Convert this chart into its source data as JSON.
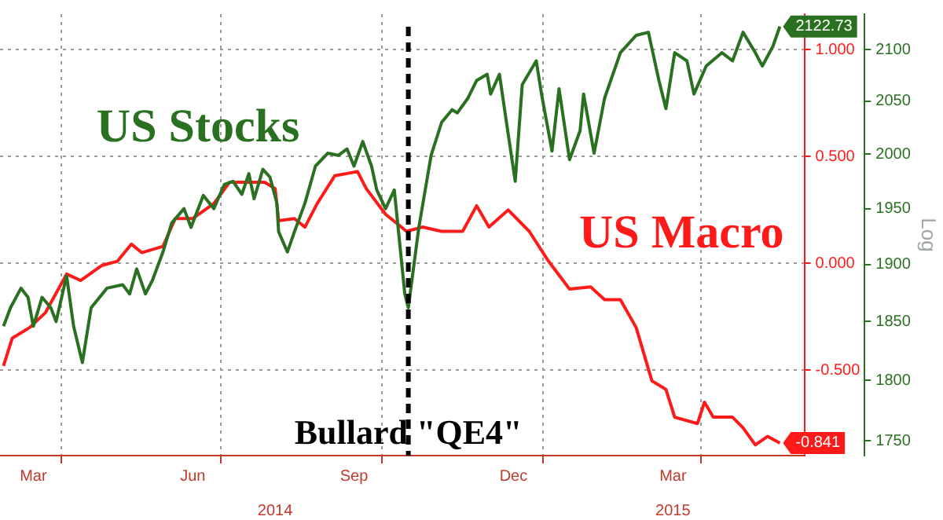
{
  "chart_data": {
    "type": "line",
    "xlim": [
      "2014-02-25",
      "2015-05-30"
    ],
    "xticks": [
      {
        "value": "2014-03-16",
        "label": "Mar"
      },
      {
        "value": "2014-04-01",
        "label": null
      },
      {
        "value": "2014-06-15",
        "label": "Jun"
      },
      {
        "value": "2014-07-01",
        "label": null
      },
      {
        "value": "2014-09-15",
        "label": "Sep"
      },
      {
        "value": "2014-10-01",
        "label": null
      },
      {
        "value": "2014-12-15",
        "label": "Dec"
      },
      {
        "value": "2015-01-01",
        "label": null
      },
      {
        "value": "2015-03-16",
        "label": "Mar"
      },
      {
        "value": "2015-04-01",
        "label": null
      }
    ],
    "x2lim": [
      "2014-02-25",
      "2015-05-30"
    ],
    "x2ticks": [
      {
        "value": "2014-08-01",
        "label": "2014"
      },
      {
        "value": "2015-03-16",
        "label": "2015"
      }
    ],
    "ylim": [
      -0.9,
      1.167
    ],
    "yticks": [
      {
        "value": 1,
        "label": "1.000"
      },
      {
        "value": 0.5,
        "label": "0.500"
      },
      {
        "value": 0,
        "label": "0.000"
      },
      {
        "value": -0.5,
        "label": "-0.500"
      }
    ],
    "y2lim": [
      1738,
      2135
    ],
    "y2ticks": [
      1750,
      1800,
      1850,
      1900,
      1950,
      2000,
      2050,
      2100
    ],
    "y2label": "Log",
    "log": "y2",
    "grid": true,
    "legend": false,
    "marker": "none",
    "ref_lines": [
      {
        "axis": "x",
        "value": "2014-10-16",
        "label": "Bullard \"QE4\"",
        "color": "#000000",
        "line_style": "dashed"
      }
    ],
    "series": [
      {
        "name": "US Stocks",
        "color": "#2a7021",
        "axis": "y2",
        "x": [
          "2014-02-27",
          "2014-03-03",
          "2014-03-09",
          "2014-03-13",
          "2014-03-16",
          "2014-03-21",
          "2014-03-26",
          "2014-03-29",
          "2014-04-04",
          "2014-04-08",
          "2014-04-13",
          "2014-04-18",
          "2014-04-27",
          "2014-05-06",
          "2014-05-10",
          "2014-05-14",
          "2014-05-19",
          "2014-05-23",
          "2014-05-29",
          "2014-06-03",
          "2014-06-10",
          "2014-06-14",
          "2014-06-21",
          "2014-06-27",
          "2014-07-03",
          "2014-07-08",
          "2014-07-13",
          "2014-07-17",
          "2014-07-20",
          "2014-07-25",
          "2014-07-29",
          "2014-08-02",
          "2014-08-03",
          "2014-08-08",
          "2014-08-12",
          "2014-08-18",
          "2014-08-24",
          "2014-08-31",
          "2014-09-06",
          "2014-09-11",
          "2014-09-15",
          "2014-09-20",
          "2014-09-25",
          "2014-09-28",
          "2014-10-03",
          "2014-10-08",
          "2014-10-14",
          "2014-10-16",
          "2014-10-22",
          "2014-10-29",
          "2014-11-04",
          "2014-11-10",
          "2014-11-13",
          "2014-11-19",
          "2014-11-24",
          "2014-11-30",
          "2014-12-02",
          "2014-12-07",
          "2014-12-11",
          "2014-12-16",
          "2014-12-20",
          "2014-12-28",
          "2014-12-31",
          "2015-01-06",
          "2015-01-10",
          "2015-01-16",
          "2015-01-22",
          "2015-01-24",
          "2015-01-30",
          "2015-02-05",
          "2015-02-14",
          "2015-02-23",
          "2015-03-02",
          "2015-03-08",
          "2015-03-12",
          "2015-03-17",
          "2015-03-24",
          "2015-03-28",
          "2015-04-04",
          "2015-04-13",
          "2015-04-19",
          "2015-04-25",
          "2015-05-02",
          "2015-05-06",
          "2015-05-12",
          "2015-05-16"
        ],
        "values": [
          1846,
          1862,
          1879,
          1871,
          1846,
          1871,
          1862,
          1850,
          1890,
          1846,
          1815,
          1862,
          1879,
          1882,
          1874,
          1896,
          1874,
          1886,
          1911,
          1937,
          1950,
          1933,
          1962,
          1950,
          1972,
          1975,
          1963,
          1982,
          1959,
          1986,
          1979,
          1955,
          1929,
          1911,
          1929,
          1955,
          1989,
          2001,
          1999,
          2005,
          1989,
          2012,
          1989,
          1967,
          1950,
          1967,
          1874,
          1862,
          1933,
          1999,
          2030,
          2042,
          2039,
          2053,
          2070,
          2076,
          2057,
          2076,
          2030,
          1975,
          2066,
          2089,
          2057,
          2003,
          2062,
          1995,
          2022,
          2057,
          2001,
          2053,
          2097,
          2114,
          2117,
          2070,
          2043,
          2097,
          2089,
          2057,
          2084,
          2097,
          2089,
          2117,
          2097,
          2084,
          2103,
          2122.73
        ],
        "value_labels": [
          null,
          null,
          null,
          null,
          null,
          null,
          null,
          null,
          null,
          null,
          null,
          null,
          null,
          null,
          null,
          null,
          null,
          null,
          null,
          null,
          null,
          null,
          null,
          null,
          null,
          null,
          null,
          null,
          null,
          null,
          null,
          null,
          null,
          null,
          null,
          null,
          null,
          null,
          null,
          null,
          null,
          null,
          null,
          null,
          null,
          null,
          null,
          null,
          null,
          null,
          null,
          null,
          null,
          null,
          null,
          null,
          null,
          null,
          null,
          null,
          null,
          null,
          null,
          null,
          null,
          null,
          null,
          null,
          null,
          null,
          null,
          null,
          null,
          null,
          null,
          null,
          null,
          null,
          null,
          null,
          null,
          null,
          null,
          null,
          null,
          "2122.73"
        ]
      },
      {
        "name": "US Macro",
        "color": "#ff1a1a",
        "x": [
          "2014-02-27",
          "2014-03-04",
          "2014-03-14",
          "2014-03-23",
          "2014-04-04",
          "2014-04-12",
          "2014-04-24",
          "2014-05-03",
          "2014-05-11",
          "2014-05-17",
          "2014-05-29",
          "2014-06-05",
          "2014-06-15",
          "2014-06-27",
          "2014-07-06",
          "2014-07-15",
          "2014-07-26",
          "2014-08-01",
          "2014-08-03",
          "2014-08-12",
          "2014-08-18",
          "2014-08-25",
          "2014-09-04",
          "2014-09-17",
          "2014-09-22",
          "2014-10-03",
          "2014-10-15",
          "2014-10-24",
          "2014-11-04",
          "2014-11-16",
          "2014-11-24",
          "2014-12-01",
          "2014-12-12",
          "2014-12-24",
          "2015-01-04",
          "2015-01-16",
          "2015-01-28",
          "2015-02-05",
          "2015-02-14",
          "2015-02-23",
          "2015-03-04",
          "2015-03-12",
          "2015-03-17",
          "2015-03-30",
          "2015-04-03",
          "2015-04-08",
          "2015-04-19",
          "2015-04-25",
          "2015-05-02",
          "2015-05-09",
          "2015-05-16"
        ],
        "values": [
          -0.48,
          -0.35,
          -0.3,
          -0.23,
          -0.05,
          -0.08,
          -0.01,
          0.01,
          0.09,
          0.05,
          0.08,
          0.21,
          0.21,
          0.28,
          0.38,
          0.38,
          0.38,
          0.35,
          0.2,
          0.21,
          0.17,
          0.28,
          0.41,
          0.43,
          0.35,
          0.23,
          0.15,
          0.17,
          0.15,
          0.15,
          0.27,
          0.17,
          0.25,
          0.15,
          0.01,
          -0.12,
          -0.11,
          -0.17,
          -0.17,
          -0.3,
          -0.55,
          -0.59,
          -0.72,
          -0.75,
          -0.65,
          -0.72,
          -0.72,
          -0.77,
          -0.85,
          -0.81,
          -0.841
        ],
        "value_labels": [
          null,
          null,
          null,
          null,
          null,
          null,
          null,
          null,
          null,
          null,
          null,
          null,
          null,
          null,
          null,
          null,
          null,
          null,
          null,
          null,
          null,
          null,
          null,
          null,
          null,
          null,
          null,
          null,
          null,
          null,
          null,
          null,
          null,
          null,
          null,
          null,
          null,
          null,
          null,
          null,
          null,
          null,
          null,
          null,
          null,
          null,
          null,
          null,
          null,
          null,
          "-0.841"
        ]
      }
    ]
  }
}
